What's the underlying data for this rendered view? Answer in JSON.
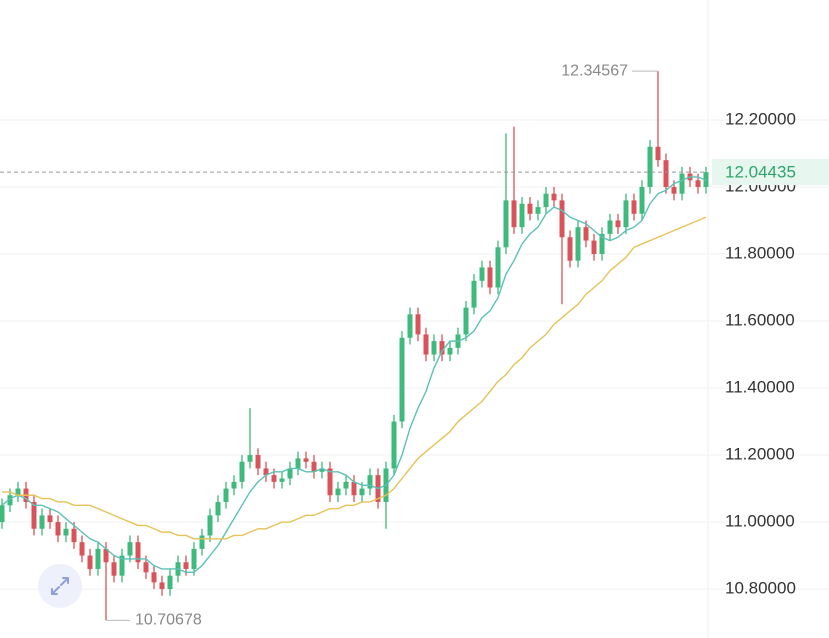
{
  "chart_data": {
    "type": "candlestick",
    "ylim": [
      10.654,
      12.558
    ],
    "yticks": [
      {
        "value": 10.8,
        "label": "10.80000"
      },
      {
        "value": 11.0,
        "label": "11.00000"
      },
      {
        "value": 11.2,
        "label": "11.20000"
      },
      {
        "value": 11.4,
        "label": "11.40000"
      },
      {
        "value": 11.6,
        "label": "11.60000"
      },
      {
        "value": 11.8,
        "label": "11.80000"
      },
      {
        "value": 12.0,
        "label": "12.00000"
      },
      {
        "value": 12.2,
        "label": "12.20000"
      }
    ],
    "grid": true,
    "up_color": "#3dba7c",
    "down_color": "#d9545a",
    "open": [
      11.0,
      11.05,
      11.08,
      11.1,
      11.06,
      10.98,
      11.02,
      11.0,
      10.96,
      10.98,
      10.94,
      10.9,
      10.86,
      10.92,
      10.88,
      10.84,
      10.9,
      10.94,
      10.88,
      10.85,
      10.82,
      10.8,
      10.84,
      10.88,
      10.86,
      10.92,
      10.96,
      11.02,
      11.06,
      11.1,
      11.12,
      11.18,
      11.2,
      11.16,
      11.14,
      11.12,
      11.13,
      11.16,
      11.19,
      11.18,
      11.15,
      11.16,
      11.08,
      11.1,
      11.12,
      11.08,
      11.1,
      11.14,
      11.06,
      11.16,
      11.3,
      11.55,
      11.62,
      11.56,
      11.5,
      11.54,
      11.5,
      11.52,
      11.56,
      11.64,
      11.72,
      11.76,
      11.7,
      11.82,
      11.96,
      11.88,
      11.95,
      11.92,
      11.94,
      11.98,
      11.96,
      11.85,
      11.78,
      11.88,
      11.84,
      11.8,
      11.86,
      11.9,
      11.88,
      11.96,
      11.92,
      12.0,
      12.12,
      12.08,
      12.0,
      11.98,
      12.04,
      12.02,
      12.0
    ],
    "high": [
      11.07,
      11.1,
      11.12,
      11.12,
      11.08,
      11.04,
      11.04,
      11.02,
      11.0,
      11.0,
      10.96,
      10.92,
      10.94,
      10.94,
      10.9,
      10.92,
      10.96,
      10.96,
      10.9,
      10.87,
      10.84,
      10.86,
      10.9,
      10.9,
      10.94,
      10.98,
      11.04,
      11.08,
      11.12,
      11.14,
      11.2,
      11.34,
      11.22,
      11.18,
      11.16,
      11.15,
      11.18,
      11.21,
      11.21,
      11.2,
      11.18,
      11.18,
      11.12,
      11.14,
      11.14,
      11.12,
      11.16,
      11.16,
      11.18,
      11.32,
      11.57,
      11.64,
      11.64,
      11.58,
      11.56,
      11.56,
      11.54,
      11.58,
      11.66,
      11.74,
      11.78,
      11.78,
      11.84,
      12.16,
      12.18,
      11.97,
      11.97,
      11.96,
      12.0,
      12.0,
      11.98,
      11.87,
      11.9,
      11.9,
      11.86,
      11.88,
      11.92,
      11.92,
      11.98,
      11.98,
      12.02,
      12.14,
      12.34567,
      12.1,
      12.02,
      12.06,
      12.06,
      12.04,
      12.06
    ],
    "low": [
      10.98,
      11.03,
      11.06,
      11.04,
      10.96,
      10.96,
      10.98,
      10.94,
      10.94,
      10.92,
      10.88,
      10.84,
      10.84,
      10.70678,
      10.82,
      10.82,
      10.88,
      10.86,
      10.83,
      10.8,
      10.78,
      10.78,
      10.82,
      10.84,
      10.84,
      10.9,
      10.94,
      11.0,
      11.04,
      11.08,
      11.1,
      11.16,
      11.14,
      11.12,
      11.1,
      11.1,
      11.11,
      11.14,
      11.16,
      11.13,
      11.13,
      11.06,
      11.06,
      11.08,
      11.06,
      11.06,
      11.08,
      11.04,
      10.98,
      11.14,
      11.28,
      11.53,
      11.54,
      11.48,
      11.48,
      11.48,
      11.48,
      11.5,
      11.54,
      11.62,
      11.7,
      11.68,
      11.68,
      11.8,
      11.86,
      11.86,
      11.9,
      11.9,
      11.92,
      11.94,
      11.65,
      11.76,
      11.76,
      11.82,
      11.78,
      11.78,
      11.84,
      11.86,
      11.86,
      11.9,
      11.9,
      11.98,
      12.06,
      11.98,
      11.96,
      11.96,
      12.0,
      11.98,
      11.98
    ],
    "close": [
      11.05,
      11.08,
      11.1,
      11.06,
      10.98,
      11.02,
      11.0,
      10.96,
      10.98,
      10.94,
      10.9,
      10.86,
      10.92,
      10.88,
      10.84,
      10.9,
      10.94,
      10.88,
      10.85,
      10.82,
      10.8,
      10.84,
      10.88,
      10.86,
      10.92,
      10.96,
      11.02,
      11.06,
      11.1,
      11.12,
      11.18,
      11.2,
      11.16,
      11.14,
      11.12,
      11.13,
      11.16,
      11.19,
      11.18,
      11.15,
      11.16,
      11.08,
      11.1,
      11.12,
      11.08,
      11.1,
      11.14,
      11.06,
      11.16,
      11.3,
      11.55,
      11.62,
      11.56,
      11.5,
      11.54,
      11.5,
      11.52,
      11.56,
      11.64,
      11.72,
      11.76,
      11.7,
      11.82,
      11.96,
      11.88,
      11.95,
      11.92,
      11.94,
      11.98,
      11.96,
      11.85,
      11.78,
      11.88,
      11.84,
      11.8,
      11.86,
      11.9,
      11.88,
      11.96,
      11.92,
      12.0,
      12.12,
      12.08,
      12.0,
      11.98,
      12.04,
      12.02,
      12.0,
      12.04435
    ],
    "overlays": [
      {
        "color": "#5cc2b6",
        "values": [
          11.05,
          11.07,
          11.08,
          11.07,
          11.05,
          11.05,
          11.04,
          11.03,
          11.01,
          10.99,
          10.97,
          10.95,
          10.94,
          10.92,
          10.9,
          10.89,
          10.89,
          10.89,
          10.89,
          10.87,
          10.86,
          10.86,
          10.86,
          10.85,
          10.85,
          10.87,
          10.9,
          10.93,
          10.97,
          11.01,
          11.05,
          11.09,
          11.12,
          11.14,
          11.15,
          11.15,
          11.16,
          11.16,
          11.15,
          11.15,
          11.16,
          11.15,
          11.15,
          11.14,
          11.12,
          11.11,
          11.11,
          11.1,
          11.11,
          11.14,
          11.2,
          11.28,
          11.34,
          11.39,
          11.46,
          11.51,
          11.54,
          11.54,
          11.55,
          11.57,
          11.61,
          11.63,
          11.67,
          11.74,
          11.78,
          11.83,
          11.86,
          11.88,
          11.92,
          11.94,
          11.93,
          11.91,
          11.9,
          11.89,
          11.87,
          11.85,
          11.84,
          11.85,
          11.87,
          11.88,
          11.9,
          11.95,
          11.98,
          11.99,
          12.01,
          12.02,
          12.03,
          12.03,
          12.02
        ]
      },
      {
        "color": "#e6c257",
        "values": [
          11.09,
          11.09,
          11.08,
          11.08,
          11.08,
          11.07,
          11.07,
          11.06,
          11.06,
          11.05,
          11.05,
          11.05,
          11.04,
          11.03,
          11.02,
          11.01,
          11.0,
          10.99,
          10.99,
          10.98,
          10.97,
          10.97,
          10.96,
          10.96,
          10.95,
          10.95,
          10.95,
          10.95,
          10.95,
          10.96,
          10.96,
          10.97,
          10.98,
          10.98,
          10.99,
          11.0,
          11.0,
          11.01,
          11.02,
          11.02,
          11.03,
          11.04,
          11.04,
          11.05,
          11.05,
          11.06,
          11.06,
          11.07,
          11.08,
          11.1,
          11.13,
          11.16,
          11.19,
          11.21,
          11.23,
          11.25,
          11.27,
          11.3,
          11.32,
          11.34,
          11.36,
          11.39,
          11.42,
          11.44,
          11.47,
          11.49,
          11.52,
          11.54,
          11.56,
          11.59,
          11.61,
          11.63,
          11.65,
          11.68,
          11.7,
          11.72,
          11.75,
          11.77,
          11.79,
          11.82,
          11.83,
          11.84,
          11.85,
          11.86,
          11.87,
          11.88,
          11.89,
          11.9,
          11.91
        ]
      }
    ]
  }
}
